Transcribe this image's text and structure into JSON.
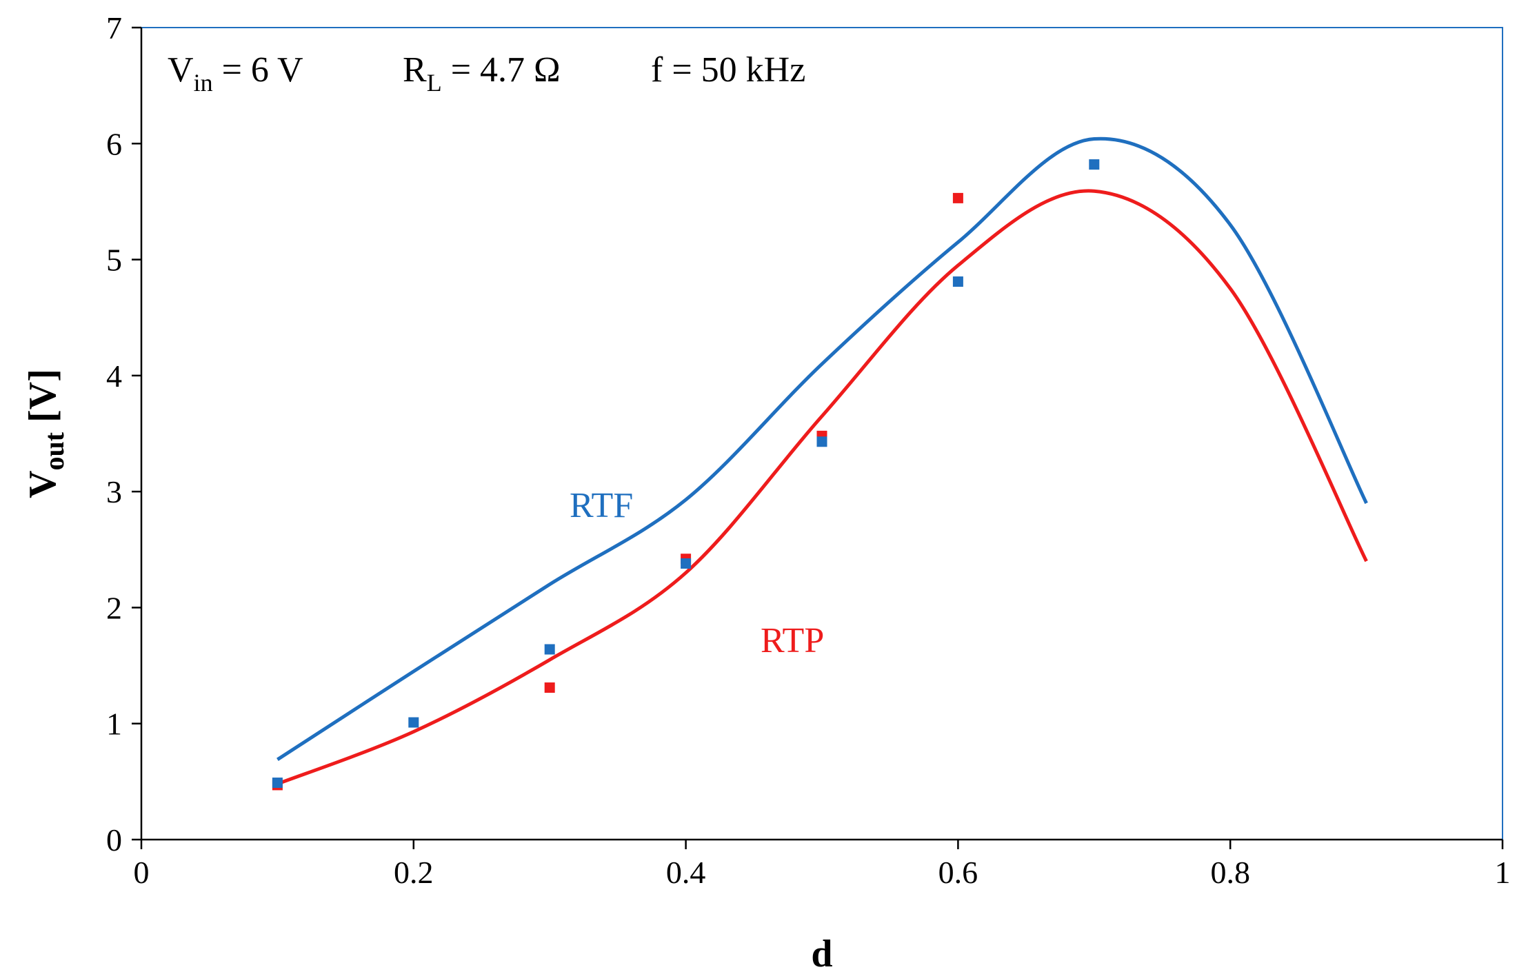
{
  "chart_data": {
    "type": "scatter",
    "title": "",
    "xlabel": "d",
    "ylabel_main": "V",
    "ylabel_sub": "out",
    "ylabel_unit": "[V]",
    "xlim": [
      0,
      1
    ],
    "ylim": [
      0,
      7
    ],
    "x_ticks": [
      "0",
      "0.2",
      "0.4",
      "0.6",
      "0.8",
      "1"
    ],
    "y_ticks": [
      "0",
      "1",
      "2",
      "3",
      "4",
      "5",
      "6",
      "7"
    ],
    "x_tick_values": [
      0,
      0.2,
      0.4,
      0.6,
      0.8,
      1
    ],
    "y_tick_values": [
      0,
      1,
      2,
      3,
      4,
      5,
      6,
      7
    ],
    "grid": false,
    "annotations": {
      "vin_main": "V",
      "vin_sub": "in",
      "vin_value": " = 6 V",
      "rl_main": "R",
      "rl_sub": "L",
      "rl_value": " = 4.7 Ω",
      "freq": "f = 50 kHz"
    },
    "series": [
      {
        "name": "RTF",
        "color": "#1f6fbf",
        "curve_x": [
          0.1,
          0.2,
          0.3,
          0.4,
          0.5,
          0.6,
          0.7,
          0.8,
          0.9
        ],
        "curve_y": [
          0.69,
          1.45,
          2.2,
          2.93,
          4.1,
          5.15,
          6.04,
          5.3,
          2.9
        ],
        "points_x": [
          0.1,
          0.2,
          0.3,
          0.4,
          0.5,
          0.6,
          0.7
        ],
        "points_y": [
          0.49,
          1.01,
          1.64,
          2.38,
          3.43,
          4.81,
          5.82
        ]
      },
      {
        "name": "RTP",
        "color": "#ee1c1c",
        "curve_x": [
          0.1,
          0.2,
          0.3,
          0.4,
          0.5,
          0.6,
          0.7,
          0.8,
          0.9
        ],
        "curve_y": [
          0.48,
          0.93,
          1.55,
          2.3,
          3.65,
          4.95,
          5.59,
          4.75,
          2.4
        ],
        "points_x": [
          0.1,
          0.3,
          0.4,
          0.5,
          0.6
        ],
        "points_y": [
          0.47,
          1.31,
          2.42,
          3.48,
          5.53
        ]
      }
    ]
  }
}
